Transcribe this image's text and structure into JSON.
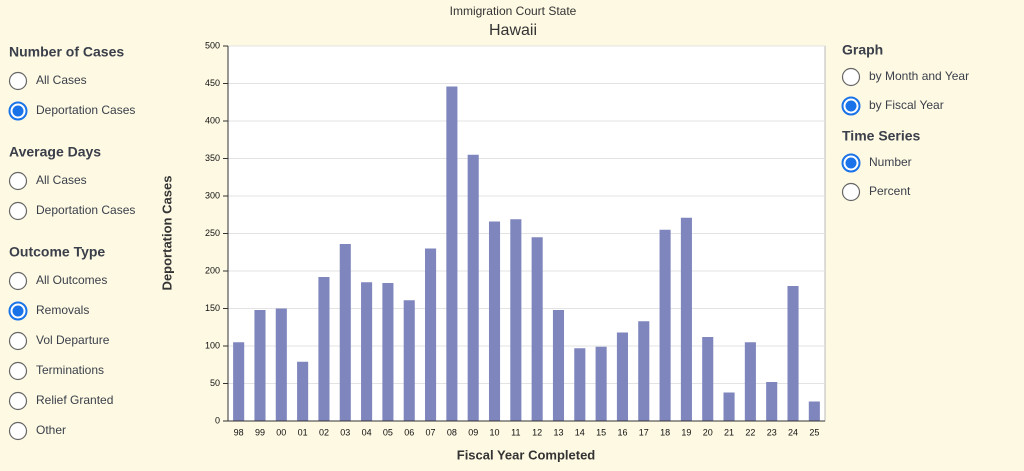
{
  "left_panel": [
    {
      "heading": "Number of Cases",
      "options": [
        "All Cases",
        "Deportation Cases"
      ],
      "selected": 1
    },
    {
      "heading": "Average Days",
      "options": [
        "All Cases",
        "Deportation Cases"
      ],
      "selected": null
    },
    {
      "heading": "Outcome Type",
      "options": [
        "All Outcomes",
        "Removals",
        "Vol Departure",
        "Terminations",
        "Relief Granted",
        "Other"
      ],
      "selected": 1
    }
  ],
  "right_panel": [
    {
      "heading": "Graph",
      "options": [
        "by Month and Year",
        "by Fiscal Year"
      ],
      "selected": 1
    },
    {
      "heading": "Time Series",
      "options": [
        "Number",
        "Percent"
      ],
      "selected": 0
    }
  ],
  "chart_data": {
    "type": "bar",
    "subtitle": "Immigration Court State",
    "title": "Hawaii",
    "x_label": "Fiscal Year Completed",
    "y_label": "Deportation Cases",
    "categories": [
      "98",
      "99",
      "00",
      "01",
      "02",
      "03",
      "04",
      "05",
      "06",
      "07",
      "08",
      "09",
      "10",
      "11",
      "12",
      "13",
      "14",
      "15",
      "16",
      "17",
      "18",
      "19",
      "20",
      "21",
      "22",
      "23",
      "24",
      "25"
    ],
    "values": [
      105,
      148,
      150,
      79,
      192,
      236,
      185,
      184,
      161,
      230,
      446,
      355,
      266,
      269,
      245,
      148,
      97,
      99,
      118,
      133,
      255,
      271,
      112,
      38,
      105,
      52,
      180,
      26
    ],
    "color": "#7f86bd",
    "ylim": [
      0,
      500
    ],
    "yticks": [
      0,
      50,
      100,
      150,
      200,
      250,
      300,
      350,
      400,
      450,
      500
    ],
    "grid": true
  }
}
